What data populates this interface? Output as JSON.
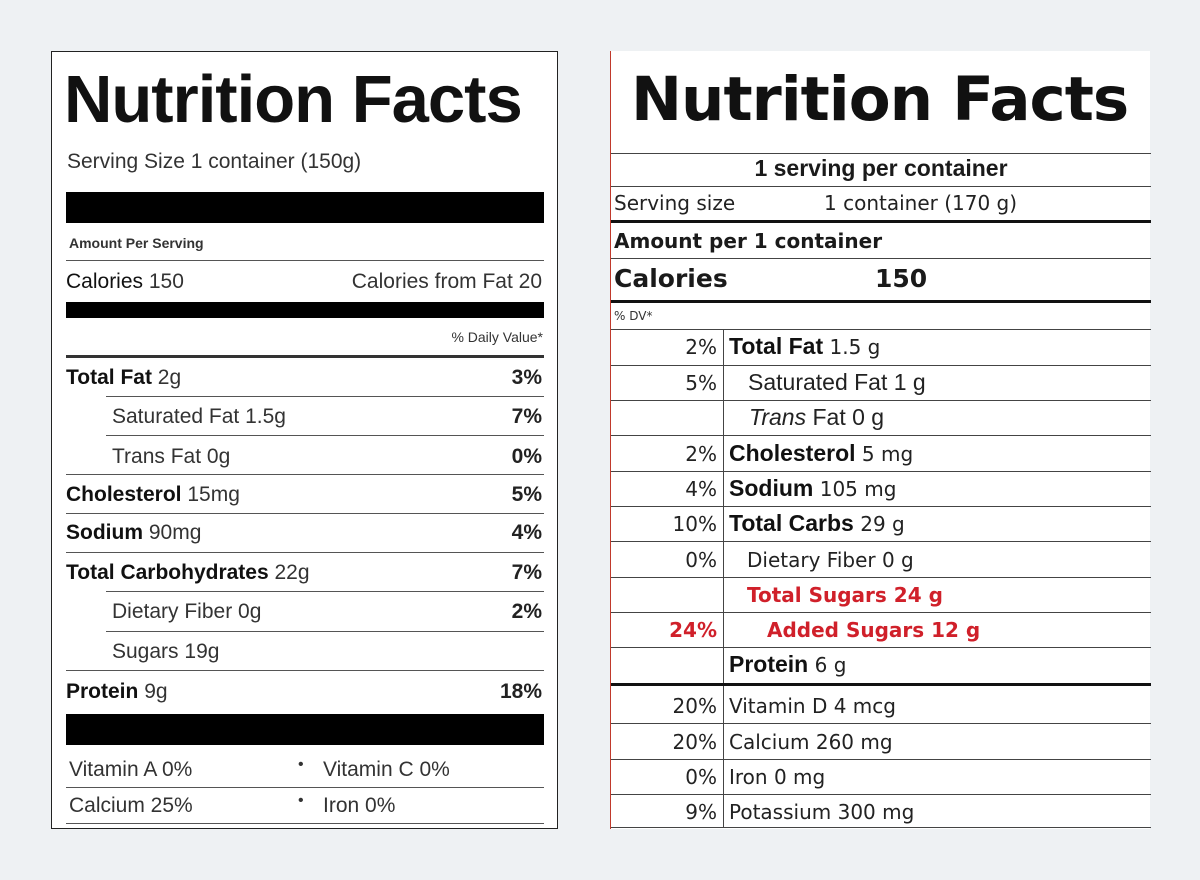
{
  "old_label": {
    "title": "Nutrition Facts",
    "serving_size": "Serving Size 1 container (150g)",
    "amount_per_serving": "Amount Per Serving",
    "calories_label": "Calories",
    "calories_value": "150",
    "calories_from_fat": "Calories from Fat 20",
    "daily_value_header": "% Daily Value*",
    "nutrients": [
      {
        "name": "Total Fat",
        "amount": "2g",
        "pct": "3%"
      },
      {
        "name": "Saturated Fat",
        "amount": "1.5g",
        "pct": "7%"
      },
      {
        "name": "Trans Fat",
        "amount": "0g",
        "pct": "0%"
      },
      {
        "name": "Cholesterol",
        "amount": "15mg",
        "pct": "5%"
      },
      {
        "name": "Sodium",
        "amount": "90mg",
        "pct": "4%"
      },
      {
        "name": "Total Carbohydrates",
        "amount": "22g",
        "pct": "7%"
      },
      {
        "name": "Dietary Fiber",
        "amount": "0g",
        "pct": "2%"
      },
      {
        "name": "Sugars",
        "amount": "19g",
        "pct": ""
      },
      {
        "name": "Protein",
        "amount": "9g",
        "pct": "18%"
      }
    ],
    "vitamins": [
      "Vitamin A 0%",
      "Vitamin C 0%",
      "Calcium 25%",
      "Iron 0%"
    ]
  },
  "new_label": {
    "title": "Nutrition Facts",
    "servings_per_container": "1 serving per container",
    "serving_size_label": "Serving size",
    "serving_size_value": "1 container (170 g)",
    "amount_per": "Amount per 1 container",
    "calories_label": "Calories",
    "calories_value": "150",
    "dv_header": "% DV*",
    "nutrients": [
      {
        "pct": "2%",
        "name": "Total Fat",
        "amount": "1.5 g"
      },
      {
        "pct": "5%",
        "name": "Saturated Fat",
        "amount": "1 g"
      },
      {
        "pct": "",
        "name": "Trans",
        "name2": "Fat",
        "amount": "0 g"
      },
      {
        "pct": "2%",
        "name": "Cholesterol",
        "amount": "5 mg"
      },
      {
        "pct": "4%",
        "name": "Sodium",
        "amount": "105 mg"
      },
      {
        "pct": "10%",
        "name": "Total Carbs",
        "amount": "29 g"
      },
      {
        "pct": "0%",
        "name": "Dietary Fiber",
        "amount": "0 g"
      },
      {
        "pct": "",
        "name": "Total Sugars 24 g",
        "amount": ""
      },
      {
        "pct": "24%",
        "name": "Added Sugars 12 g",
        "amount": ""
      },
      {
        "pct": "",
        "name": "Protein",
        "amount": "6 g"
      }
    ],
    "vitamins": [
      {
        "pct": "20%",
        "name": "Vitamin D 4 mcg"
      },
      {
        "pct": "20%",
        "name": "Calcium 260 mg"
      },
      {
        "pct": "0%",
        "name": "Iron 0 mg"
      },
      {
        "pct": "9%",
        "name": "Potassium 300 mg"
      }
    ],
    "highlight_color": "#d0202a"
  }
}
